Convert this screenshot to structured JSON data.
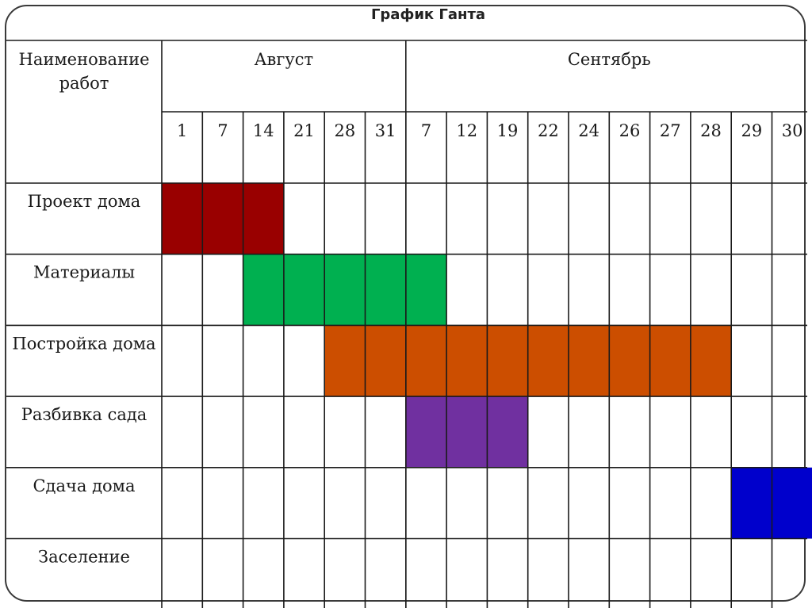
{
  "title": "График Ганта",
  "chart_data": {
    "type": "gantt",
    "title": "График Ганта",
    "task_header": "Наименование работ",
    "months": [
      {
        "name": "Август",
        "dates": [
          1,
          7,
          14,
          21,
          28,
          31
        ]
      },
      {
        "name": "Сентябрь",
        "dates": [
          7,
          12,
          19,
          22,
          24,
          26,
          27,
          28,
          29,
          30
        ]
      }
    ],
    "columns": [
      {
        "month": "Август",
        "day": 1
      },
      {
        "month": "Август",
        "day": 7
      },
      {
        "month": "Август",
        "day": 14
      },
      {
        "month": "Август",
        "day": 21
      },
      {
        "month": "Август",
        "day": 28
      },
      {
        "month": "Август",
        "day": 31
      },
      {
        "month": "Сентябрь",
        "day": 7
      },
      {
        "month": "Сентябрь",
        "day": 12
      },
      {
        "month": "Сентябрь",
        "day": 19
      },
      {
        "month": "Сентябрь",
        "day": 22
      },
      {
        "month": "Сентябрь",
        "day": 24
      },
      {
        "month": "Сентябрь",
        "day": 26
      },
      {
        "month": "Сентябрь",
        "day": 27
      },
      {
        "month": "Сентябрь",
        "day": 28
      },
      {
        "month": "Сентябрь",
        "day": 29
      },
      {
        "month": "Сентябрь",
        "day": 30
      }
    ],
    "tasks": [
      {
        "name": "Проект дома",
        "start": {
          "month": "Август",
          "day": 1
        },
        "end": {
          "month": "Август",
          "day": 14
        },
        "color": "#990000"
      },
      {
        "name": "Материалы",
        "start": {
          "month": "Август",
          "day": 14
        },
        "end": {
          "month": "Сентябрь",
          "day": 7
        },
        "color": "#00b050"
      },
      {
        "name": "Постройка дома",
        "start": {
          "month": "Август",
          "day": 28
        },
        "end": {
          "month": "Сентябрь",
          "day": 28
        },
        "color": "#cc4e00"
      },
      {
        "name": "Разбивка сада",
        "start": {
          "month": "Сентябрь",
          "day": 7
        },
        "end": {
          "month": "Сентябрь",
          "day": 19
        },
        "color": "#7030a0"
      },
      {
        "name": "Сдача дома",
        "start": {
          "month": "Сентябрь",
          "day": 29
        },
        "end": {
          "month": "Сентябрь",
          "day": 30
        },
        "color": "#0000cc"
      },
      {
        "name": "Заселение",
        "start": null,
        "end": null,
        "color": null
      }
    ]
  }
}
